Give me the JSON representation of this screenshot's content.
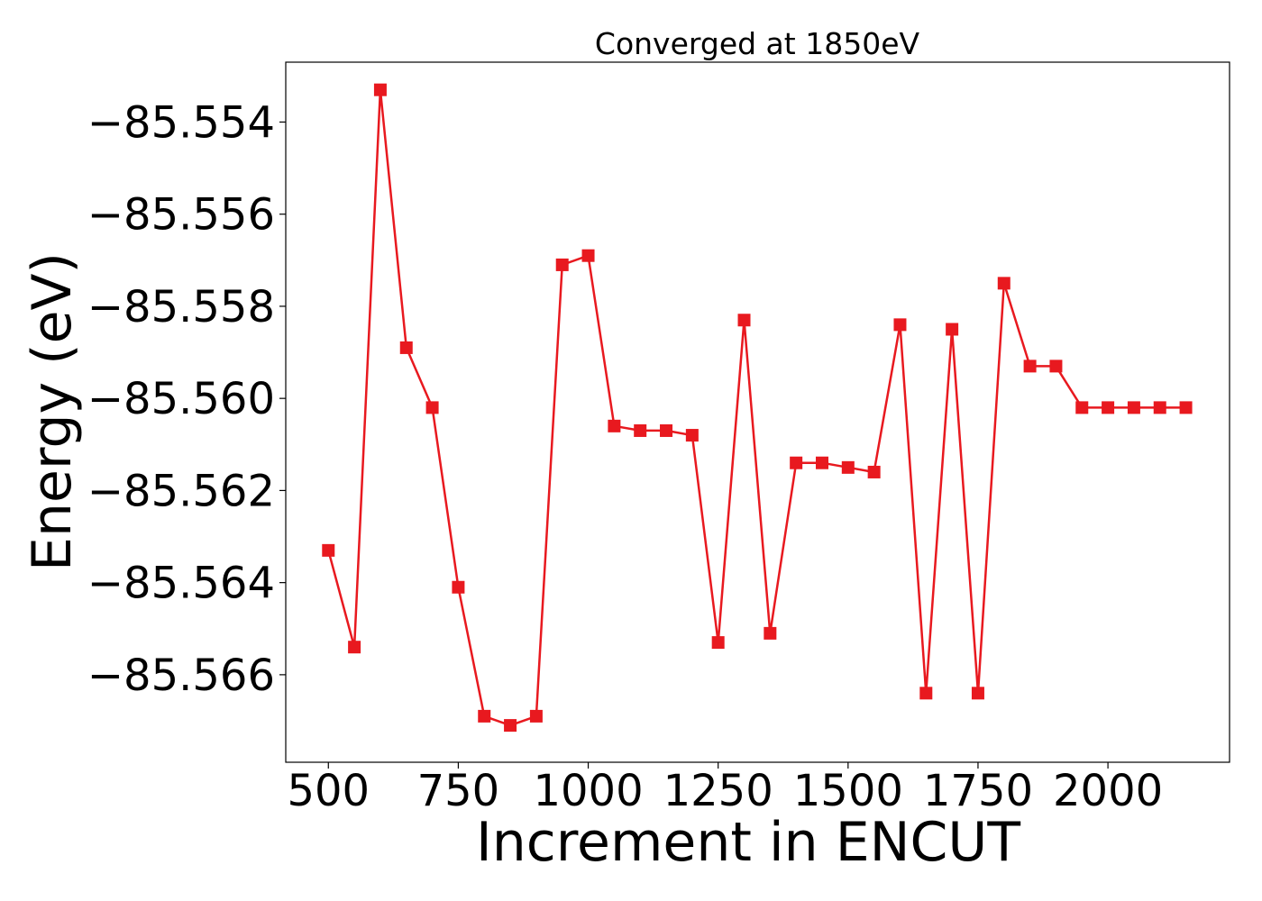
{
  "chart_data": {
    "type": "line",
    "title": "Converged at 1850eV",
    "xlabel": "Increment in ENCUT",
    "ylabel": "Energy (eV)",
    "xlim": [
      418,
      2234
    ],
    "ylim": [
      -85.5679,
      -85.5527
    ],
    "x_ticks": [
      500,
      750,
      1000,
      1250,
      1500,
      1750,
      2000
    ],
    "x_tick_labels": [
      "500",
      "750",
      "1000",
      "1250",
      "1500",
      "1750",
      "2000"
    ],
    "y_ticks": [
      -85.554,
      -85.556,
      -85.558,
      -85.56,
      -85.562,
      -85.564,
      -85.566
    ],
    "y_tick_labels": [
      "−85.554",
      "−85.556",
      "−85.558",
      "−85.560",
      "−85.562",
      "−85.564",
      "−85.566"
    ],
    "grid": false,
    "legend": "none",
    "series": [
      {
        "color": "#e8191f",
        "marker": "square",
        "x": [
          500,
          550,
          600,
          650,
          700,
          750,
          800,
          850,
          900,
          950,
          1000,
          1050,
          1100,
          1150,
          1200,
          1250,
          1300,
          1350,
          1400,
          1450,
          1500,
          1550,
          1600,
          1650,
          1700,
          1750,
          1800,
          1850,
          1900,
          1950,
          2000,
          2050,
          2100,
          2150
        ],
        "y": [
          -85.5633,
          -85.5654,
          -85.5533,
          -85.5589,
          -85.5602,
          -85.5641,
          -85.5669,
          -85.5671,
          -85.5669,
          -85.5571,
          -85.5569,
          -85.5606,
          -85.5607,
          -85.5607,
          -85.5608,
          -85.5653,
          -85.5583,
          -85.5651,
          -85.5614,
          -85.5614,
          -85.5615,
          -85.5616,
          -85.5584,
          -85.5664,
          -85.5585,
          -85.5664,
          -85.5575,
          -85.5593,
          -85.5593,
          -85.5602,
          -85.5602,
          -85.5602,
          -85.5602,
          -85.5602
        ]
      }
    ]
  }
}
